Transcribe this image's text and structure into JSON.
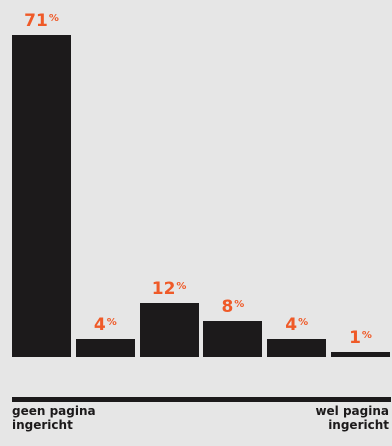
{
  "chart_data": {
    "type": "bar",
    "categories": [
      "",
      "",
      "",
      "",
      "",
      ""
    ],
    "values": [
      71,
      4,
      12,
      8,
      4,
      1
    ],
    "value_suffix": "%",
    "title": "",
    "xlabel": "",
    "ylabel": "",
    "ylim": [
      0,
      71
    ],
    "grid": false,
    "legend": "none",
    "axis_end_labels": {
      "left": "geen pagina\ningericht",
      "right": "wel pagina\ningericht"
    },
    "colors": {
      "bar": "#1c1a1b",
      "value_label": "#ef5a28",
      "background": "#e6e6e6"
    }
  }
}
